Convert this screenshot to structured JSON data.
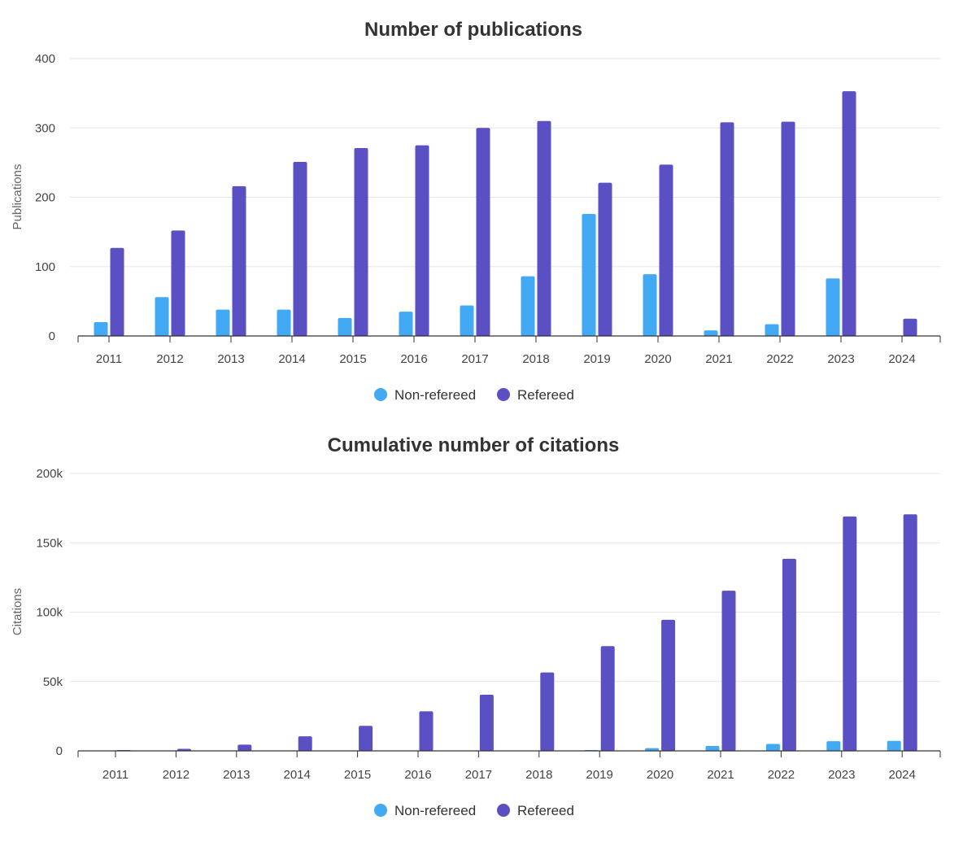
{
  "chart_data": [
    {
      "type": "bar",
      "title": "Number of publications",
      "xlabel": "",
      "ylabel": "Publications",
      "ylim": [
        0,
        400
      ],
      "yticks": [
        0,
        100,
        200,
        300,
        400
      ],
      "ytick_labels": [
        "0",
        "100",
        "200",
        "300",
        "400"
      ],
      "categories": [
        "2011",
        "2012",
        "2013",
        "2014",
        "2015",
        "2016",
        "2017",
        "2018",
        "2019",
        "2020",
        "2021",
        "2022",
        "2023",
        "2024"
      ],
      "series": [
        {
          "name": "Non-refereed",
          "color": "#42aaf4",
          "values": [
            20,
            56,
            38,
            38,
            26,
            35,
            44,
            86,
            176,
            89,
            8,
            17,
            83,
            0
          ]
        },
        {
          "name": "Refereed",
          "color": "#5a4fc3",
          "values": [
            127,
            152,
            216,
            251,
            271,
            275,
            300,
            310,
            221,
            247,
            308,
            309,
            353,
            25
          ]
        }
      ],
      "legend": "bottom-center"
    },
    {
      "type": "bar",
      "title": "Cumulative number of citations",
      "xlabel": "",
      "ylabel": "Citations",
      "ylim": [
        0,
        200000
      ],
      "yticks": [
        0,
        50000,
        100000,
        150000,
        200000
      ],
      "ytick_labels": [
        "0",
        "50k",
        "100k",
        "150k",
        "200k"
      ],
      "categories": [
        "2011",
        "2012",
        "2013",
        "2014",
        "2015",
        "2016",
        "2017",
        "2018",
        "2019",
        "2020",
        "2021",
        "2022",
        "2023",
        "2024"
      ],
      "series": [
        {
          "name": "Non-refereed",
          "color": "#42aaf4",
          "values": [
            0,
            0,
            0,
            0,
            0,
            0,
            0,
            0,
            500,
            2000,
            3500,
            5000,
            7000,
            7200
          ]
        },
        {
          "name": "Refereed",
          "color": "#5a4fc3",
          "values": [
            300,
            1500,
            4500,
            10500,
            18000,
            28500,
            40500,
            56500,
            75500,
            94500,
            115500,
            138500,
            169000,
            170500
          ]
        }
      ],
      "legend": "bottom-center"
    }
  ]
}
